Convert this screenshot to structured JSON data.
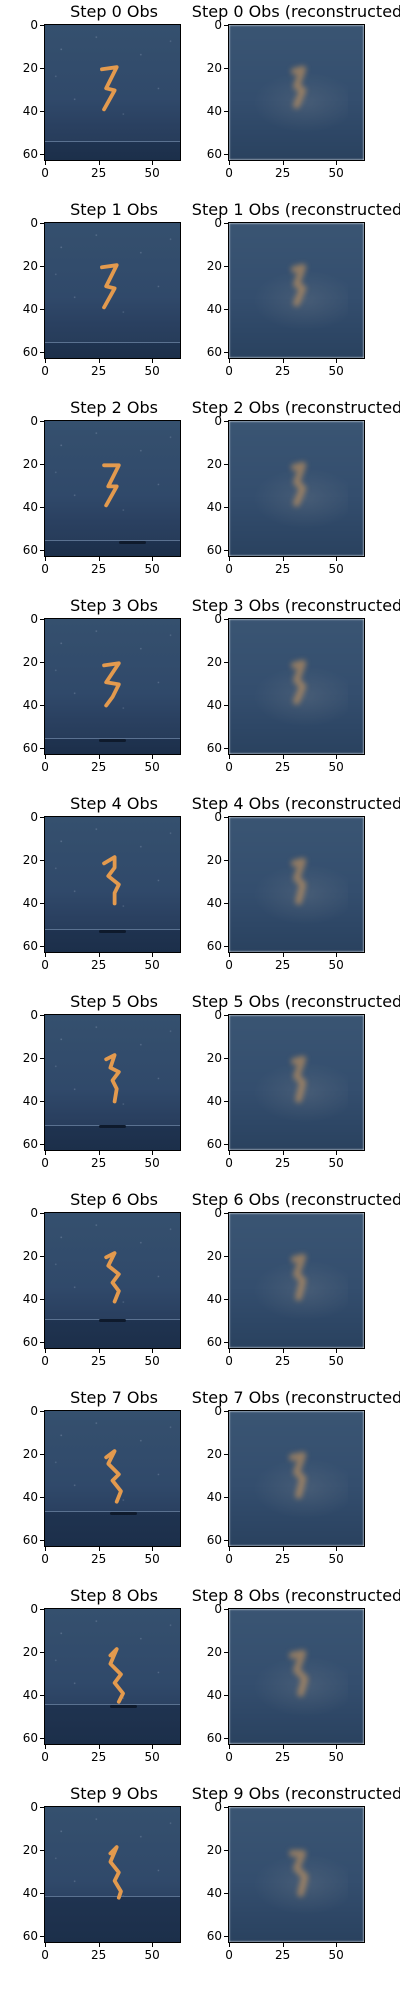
{
  "figure": {
    "rows": [
      {
        "obs_title": "Step 0 Obs",
        "recon_title": "Step 0 Obs (reconstructed"
      },
      {
        "obs_title": "Step 1 Obs",
        "recon_title": "Step 1 Obs (reconstructed"
      },
      {
        "obs_title": "Step 2 Obs",
        "recon_title": "Step 2 Obs (reconstructed"
      },
      {
        "obs_title": "Step 3 Obs",
        "recon_title": "Step 3 Obs (reconstructed"
      },
      {
        "obs_title": "Step 4 Obs",
        "recon_title": "Step 4 Obs (reconstructed"
      },
      {
        "obs_title": "Step 5 Obs",
        "recon_title": "Step 5 Obs (reconstructed"
      },
      {
        "obs_title": "Step 6 Obs",
        "recon_title": "Step 6 Obs (reconstructed"
      },
      {
        "obs_title": "Step 7 Obs",
        "recon_title": "Step 7 Obs (reconstructed"
      },
      {
        "obs_title": "Step 8 Obs",
        "recon_title": "Step 8 Obs (reconstructed"
      },
      {
        "obs_title": "Step 9 Obs",
        "recon_title": "Step 9 Obs (reconstructed"
      }
    ],
    "y_ticks": [
      "0",
      "20",
      "40",
      "60"
    ],
    "x_ticks": [
      "0",
      "25",
      "50"
    ],
    "colors": {
      "background": "#ffffff",
      "scene_dark_blue": "#30496a",
      "digit_orange": "#e39a4e"
    }
  }
}
